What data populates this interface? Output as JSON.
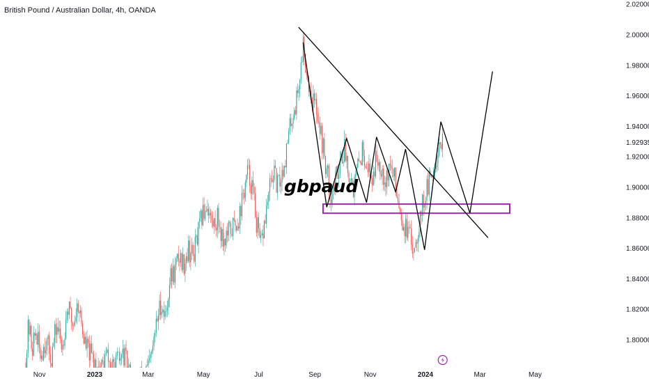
{
  "chart_data": {
    "type": "candlestick",
    "title": "British Pound / Australian Dollar, 4h, OANDA",
    "annotation": "gbpaud",
    "y_ticks": [
      1.8,
      1.82,
      1.84,
      1.86,
      1.88,
      1.9,
      1.92,
      1.94,
      1.96,
      1.98,
      2.0,
      2.02
    ],
    "y_ticks_labels": [
      "1.80000",
      "1.82000",
      "1.84000",
      "1.86000",
      "1.88000",
      "1.90000",
      "1.92000",
      "1.94000",
      "1.96000",
      "1.98000",
      "2.00000",
      "2.02000"
    ],
    "last_price_label": "1.92935",
    "last_price": 1.92935,
    "x_ticks": [
      {
        "label": "Nov",
        "date": "2022-11-01",
        "bold": false
      },
      {
        "label": "2023",
        "date": "2023-01-01",
        "bold": true
      },
      {
        "label": "Mar",
        "date": "2023-03-01",
        "bold": false
      },
      {
        "label": "May",
        "date": "2023-05-01",
        "bold": false
      },
      {
        "label": "Jul",
        "date": "2023-07-01",
        "bold": false
      },
      {
        "label": "Sep",
        "date": "2023-09-01",
        "bold": false
      },
      {
        "label": "Nov",
        "date": "2023-11-01",
        "bold": false
      },
      {
        "label": "2024",
        "date": "2024-01-01",
        "bold": true
      },
      {
        "label": "Mar",
        "date": "2024-03-01",
        "bold": false
      },
      {
        "label": "May",
        "date": "2024-05-01",
        "bold": false
      }
    ],
    "price_path": [
      [
        "2022-10-17",
        1.785
      ],
      [
        "2022-10-20",
        1.81
      ],
      [
        "2022-10-24",
        1.795
      ],
      [
        "2022-10-28",
        1.805
      ],
      [
        "2022-11-02",
        1.79
      ],
      [
        "2022-11-08",
        1.8
      ],
      [
        "2022-11-14",
        1.788
      ],
      [
        "2022-11-20",
        1.81
      ],
      [
        "2022-11-26",
        1.795
      ],
      [
        "2022-12-02",
        1.822
      ],
      [
        "2022-12-08",
        1.81
      ],
      [
        "2022-12-14",
        1.825
      ],
      [
        "2022-12-20",
        1.8
      ],
      [
        "2022-12-27",
        1.79
      ],
      [
        "2023-01-03",
        1.785
      ],
      [
        "2023-01-08",
        1.782
      ],
      [
        "2023-01-14",
        1.79
      ],
      [
        "2023-01-20",
        1.78
      ],
      [
        "2023-01-26",
        1.785
      ],
      [
        "2023-02-02",
        1.79
      ],
      [
        "2023-02-10",
        1.775
      ],
      [
        "2023-02-17",
        1.77
      ],
      [
        "2023-02-24",
        1.78
      ],
      [
        "2023-03-01",
        1.78
      ],
      [
        "2023-03-05",
        1.79
      ],
      [
        "2023-03-10",
        1.81
      ],
      [
        "2023-03-15",
        1.825
      ],
      [
        "2023-03-20",
        1.815
      ],
      [
        "2023-03-25",
        1.84
      ],
      [
        "2023-03-30",
        1.845
      ],
      [
        "2023-04-04",
        1.855
      ],
      [
        "2023-04-09",
        1.85
      ],
      [
        "2023-04-14",
        1.86
      ],
      [
        "2023-04-19",
        1.855
      ],
      [
        "2023-04-24",
        1.865
      ],
      [
        "2023-04-29",
        1.88
      ],
      [
        "2023-05-05",
        1.89
      ],
      [
        "2023-05-11",
        1.875
      ],
      [
        "2023-05-17",
        1.88
      ],
      [
        "2023-05-23",
        1.865
      ],
      [
        "2023-05-29",
        1.87
      ],
      [
        "2023-06-04",
        1.875
      ],
      [
        "2023-06-09",
        1.88
      ],
      [
        "2023-06-14",
        1.895
      ],
      [
        "2023-06-19",
        1.91
      ],
      [
        "2023-06-24",
        1.9
      ],
      [
        "2023-06-29",
        1.875
      ],
      [
        "2023-07-03",
        1.86
      ],
      [
        "2023-07-07",
        1.875
      ],
      [
        "2023-07-12",
        1.895
      ],
      [
        "2023-07-17",
        1.91
      ],
      [
        "2023-07-22",
        1.9
      ],
      [
        "2023-07-27",
        1.91
      ],
      [
        "2023-08-01",
        1.925
      ],
      [
        "2023-08-06",
        1.945
      ],
      [
        "2023-08-11",
        1.955
      ],
      [
        "2023-08-16",
        1.975
      ],
      [
        "2023-08-19",
        1.995
      ],
      [
        "2023-08-22",
        1.98
      ],
      [
        "2023-08-26",
        1.965
      ],
      [
        "2023-08-31",
        1.955
      ],
      [
        "2023-09-04",
        1.95
      ],
      [
        "2023-09-09",
        1.93
      ],
      [
        "2023-09-14",
        1.91
      ],
      [
        "2023-09-19",
        1.895
      ],
      [
        "2023-09-24",
        1.905
      ],
      [
        "2023-09-29",
        1.92
      ],
      [
        "2023-10-04",
        1.925
      ],
      [
        "2023-10-09",
        1.91
      ],
      [
        "2023-10-14",
        1.9
      ],
      [
        "2023-10-19",
        1.915
      ],
      [
        "2023-10-24",
        1.925
      ],
      [
        "2023-10-29",
        1.915
      ],
      [
        "2023-11-03",
        1.905
      ],
      [
        "2023-11-08",
        1.92
      ],
      [
        "2023-11-13",
        1.915
      ],
      [
        "2023-11-18",
        1.905
      ],
      [
        "2023-11-23",
        1.915
      ],
      [
        "2023-11-28",
        1.905
      ],
      [
        "2023-12-03",
        1.89
      ],
      [
        "2023-12-08",
        1.875
      ],
      [
        "2023-12-13",
        1.87
      ],
      [
        "2023-12-18",
        1.86
      ],
      [
        "2023-12-23",
        1.87
      ],
      [
        "2023-12-27",
        1.885
      ],
      [
        "2024-01-01",
        1.895
      ],
      [
        "2024-01-06",
        1.905
      ],
      [
        "2024-01-11",
        1.915
      ],
      [
        "2024-01-16",
        1.93
      ],
      [
        "2024-01-20",
        1.93
      ]
    ],
    "drawings": {
      "trendline": [
        [
          "2023-08-14",
          2.005
        ],
        [
          "2024-03-10",
          1.867
        ]
      ],
      "projection_path": [
        [
          "2023-08-19",
          1.995
        ],
        [
          "2023-09-14",
          1.887
        ],
        [
          "2023-10-06",
          1.932
        ],
        [
          "2023-10-28",
          1.89
        ],
        [
          "2023-11-08",
          1.933
        ],
        [
          "2023-11-29",
          1.897
        ],
        [
          "2023-12-10",
          1.925
        ],
        [
          "2023-12-31",
          1.859
        ],
        [
          "2024-01-18",
          1.943
        ],
        [
          "2024-02-19",
          1.883
        ],
        [
          "2024-03-15",
          1.976
        ]
      ],
      "zone": {
        "from": "2023-09-10",
        "to": "2024-04-03",
        "low": 1.883,
        "high": 1.889
      }
    },
    "colors": {
      "up": "#26a69a",
      "down": "#ef5350",
      "lines": "#000000",
      "zone": "#9c27b0",
      "axis_text": "#131722"
    },
    "grid": false
  }
}
